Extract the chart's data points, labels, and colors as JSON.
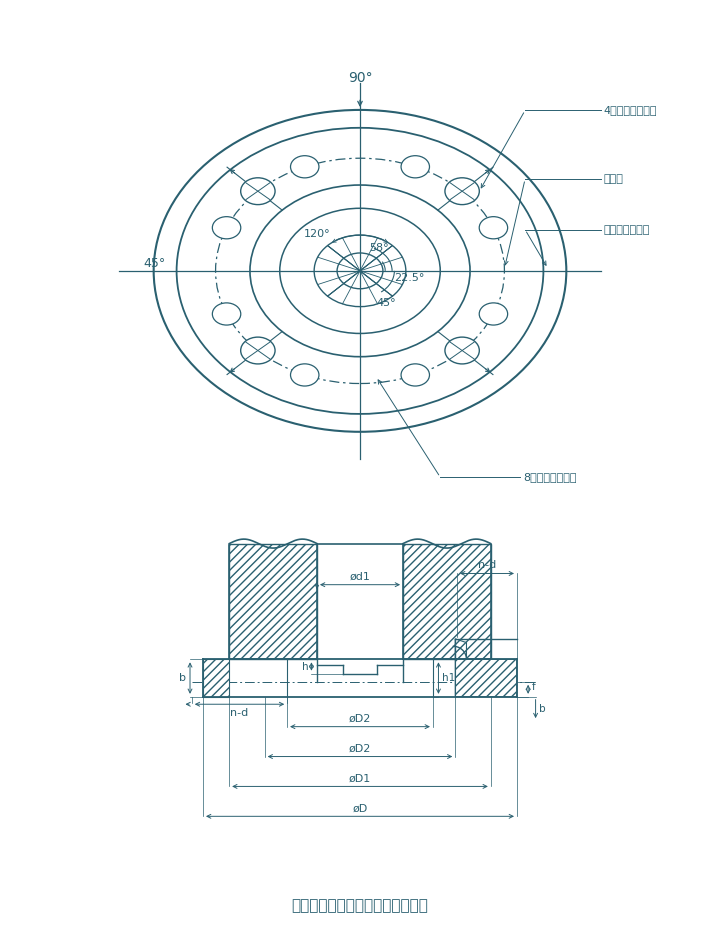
{
  "bg_color": "#ffffff",
  "line_color": "#2a6070",
  "title": "图一、电动装置与阀门的连接形式",
  "top_label": "90°",
  "label_45": "45°",
  "label_120": "120°",
  "label_58": "58°",
  "label_225": "22.5°",
  "label_45b": "45°",
  "ann_4holes": "4个螺孔时的位置",
  "ann_centerline": "中心线",
  "ann_parallel": "与电机轴线平行",
  "ann_8holes": "8个光孔时的位置"
}
